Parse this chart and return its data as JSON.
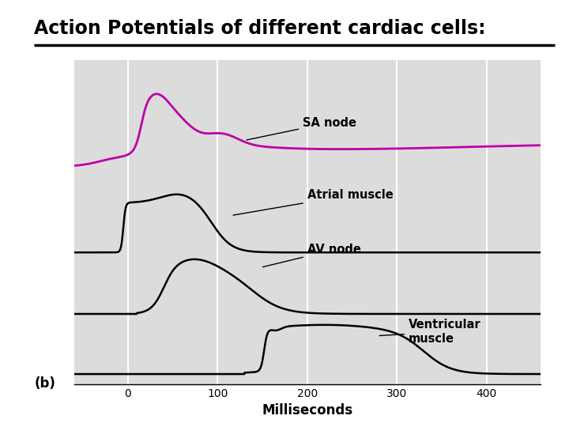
{
  "title": "Action Potentials of different cardiac cells:",
  "title_fontsize": 17,
  "xlabel": "Milliseconds",
  "xlabel_fontsize": 12,
  "subplot_label": "(b)",
  "bg_color": "#dcdcdc",
  "fig_bg": "#ffffff",
  "xmin": -60,
  "xmax": 460,
  "ylim_min": -0.15,
  "ylim_max": 4.6,
  "sa_color": "#bb00aa",
  "black": "#000000",
  "label_fontsize": 10.5,
  "labels": {
    "sa_node": "SA node",
    "atrial": "Atrial muscle",
    "av_node": "AV node",
    "ventricular": "Ventricular\nmuscle"
  }
}
